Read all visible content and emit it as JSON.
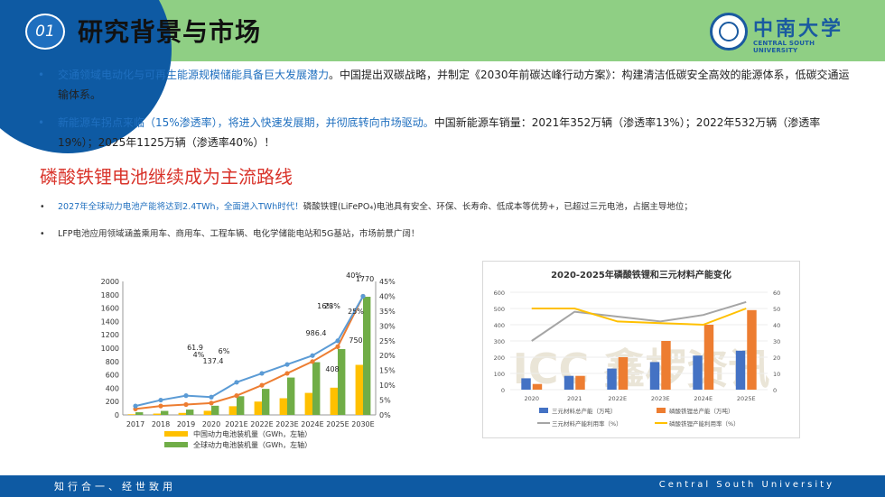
{
  "header": {
    "number": "01",
    "title": "研究背景与市场",
    "logo_cn": "中南大学",
    "logo_en": "CENTRAL SOUTH UNIVERSITY",
    "bg_color": "#8fcf84",
    "accent_color": "#0e5aa3"
  },
  "bullets": [
    {
      "highlight": "交通领域电动化与可再生能源规模储能具备巨大发展潜力",
      "rest": "。中国提出双碳战略，并制定《2030年前碳达峰行动方案》：构建清洁低碳安全高效的能源体系，低碳交通运输体系。"
    },
    {
      "highlight": "新能源车拐点来临（15%渗透率），将进入快速发展期，并彻底转向市场驱动。",
      "rest": "中国新能源车销量：2021年352万辆（渗透率13%）；2022年532万辆（渗透率19%）；2025年1125万辆（渗透率40%）！"
    }
  ],
  "section": {
    "title": "磷酸铁锂电池继续成为主流路线",
    "bullets": [
      {
        "highlight": "2027年全球动力电池产能将达到2.4TWh，全面进入TWh时代！",
        "rest": "磷酸铁锂(LiFePO₄)电池具有安全、环保、长寿命、低成本等优势+，已超过三元电池，占据主导地位；"
      },
      {
        "highlight": "",
        "rest": "LFP电池应用领域涵盖乘用车、商用车、工程车辆、电化学储能电站和5G基站，市场前景广阔！"
      }
    ]
  },
  "chart_data": [
    {
      "type": "bar",
      "categories": [
        "2017",
        "2018",
        "2019",
        "2020",
        "2021E",
        "2022E",
        "2023E",
        "2024E",
        "2025E",
        "2030E"
      ],
      "series": [
        {
          "name": "中国动力电池装机量（GWh，左轴）",
          "color": "#ffc000",
          "values": [
            10,
            20,
            30,
            61.9,
            130,
            200,
            250,
            330,
            408,
            750
          ]
        },
        {
          "name": "全球动力电池装机量（GWh，左轴）",
          "color": "#70ad47",
          "values": [
            40,
            60,
            80,
            137.4,
            280,
            390,
            560,
            790,
            986.4,
            1770
          ]
        },
        {
          "name": "",
          "type": "line",
          "axis": "right",
          "color": "#ed7d31",
          "values": [
            2,
            3,
            3.5,
            4,
            6.5,
            10,
            14,
            18,
            23,
            40
          ]
        },
        {
          "name": "",
          "type": "line",
          "axis": "right",
          "color": "#5b9bd5",
          "values": [
            3,
            5,
            6.5,
            6,
            11,
            14,
            17,
            20,
            25,
            40
          ]
        }
      ],
      "annotations": [
        "61.9",
        "137.4",
        "4%",
        "6%",
        "408",
        "986.4",
        "16%",
        "23%",
        "25%",
        "750",
        "1770",
        "40%"
      ],
      "yticks_left": [
        "0",
        "200",
        "400",
        "600",
        "800",
        "1000",
        "1200",
        "1400",
        "1600",
        "1800",
        "2000"
      ],
      "yticks_right": [
        "0%",
        "5%",
        "10%",
        "15%",
        "20%",
        "25%",
        "30%",
        "35%",
        "40%",
        "45%"
      ],
      "ylim": [
        0,
        2000
      ],
      "ylim_right": [
        0,
        45
      ]
    },
    {
      "type": "bar",
      "title": "2020-2025年磷酸铁锂和三元材料产能变化",
      "categories": [
        "2020",
        "2021",
        "2022E",
        "2023E",
        "2024E",
        "2025E"
      ],
      "series": [
        {
          "name": "三元材料总产能（万吨）",
          "color": "#4472c4",
          "values": [
            70,
            85,
            130,
            170,
            210,
            240
          ]
        },
        {
          "name": "磷酸铁锂总产能（万吨）",
          "color": "#ed7d31",
          "values": [
            35,
            85,
            200,
            300,
            400,
            490
          ]
        },
        {
          "name": "三元材料产能利用率（%）",
          "type": "line",
          "axis": "right",
          "color": "#a5a5a5",
          "values": [
            30,
            48,
            45,
            42,
            46,
            54
          ]
        },
        {
          "name": "磷酸铁锂产能利用率（%）",
          "type": "line",
          "axis": "right",
          "color": "#ffc000",
          "values": [
            50,
            50,
            42,
            41,
            40,
            50
          ]
        }
      ],
      "yticks_left": [
        "0",
        "100",
        "200",
        "300",
        "400",
        "500",
        "600"
      ],
      "yticks_right": [
        "0",
        "10",
        "20",
        "30",
        "40",
        "50",
        "60"
      ],
      "ylim": [
        0,
        600
      ],
      "ylim_right": [
        0,
        60
      ],
      "watermark": "ICC 鑫椤资讯"
    }
  ],
  "footer": {
    "left": "知行合一、经世致用",
    "right": "Central South University"
  }
}
